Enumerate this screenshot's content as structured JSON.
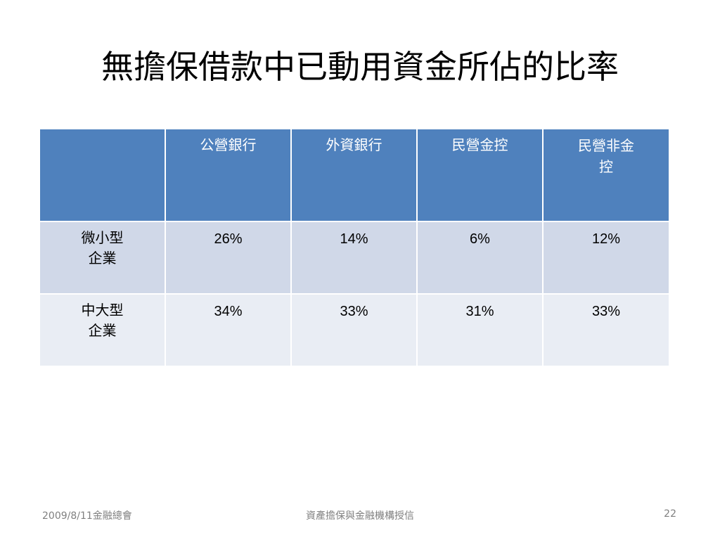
{
  "slide": {
    "title": "無擔保借款中已動用資金所佔的比率"
  },
  "table": {
    "corner": "",
    "columns": [
      {
        "line1": "公營銀行",
        "line2": ""
      },
      {
        "line1": "外資銀行",
        "line2": ""
      },
      {
        "line1": "民營金控",
        "line2": ""
      },
      {
        "line1": "民營非金",
        "line2": "控"
      }
    ],
    "rows": [
      {
        "label_line1": "微小型",
        "label_line2": "企業",
        "values": [
          "26%",
          "14%",
          "6%",
          "12%"
        ]
      },
      {
        "label_line1": "中大型",
        "label_line2": "企業",
        "values": [
          "34%",
          "33%",
          "31%",
          "33%"
        ]
      }
    ]
  },
  "footer": {
    "left": "2009/8/11金融總會",
    "center": "資產擔保與金融機構授信",
    "page_number": "22"
  },
  "colors": {
    "header_fill": "#4f81bd",
    "row_odd_fill": "#d0d8e8",
    "row_even_fill": "#e9edf4",
    "footer_text": "#7f7f7f"
  }
}
